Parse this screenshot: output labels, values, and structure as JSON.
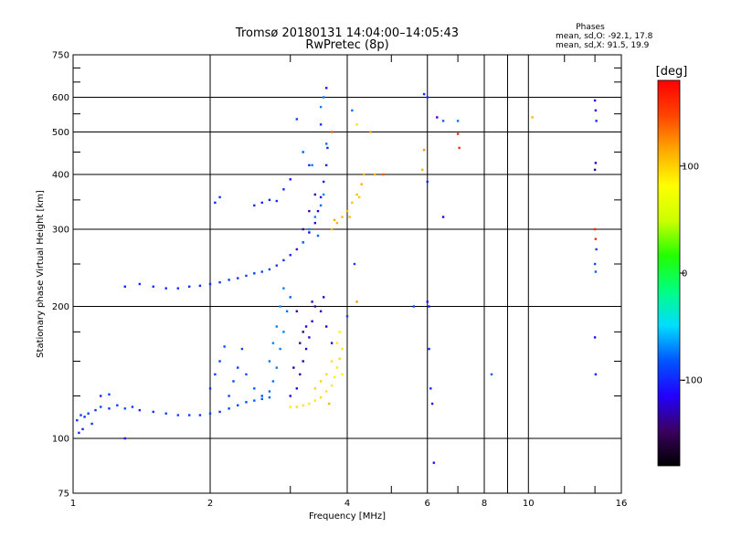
{
  "chart_data": {
    "type": "scatter",
    "title": "Tromsø 20180131 14:04:00–14:05:43",
    "subtitle": "RwPretec (8p)",
    "xlabel": "Frequency [MHz]",
    "ylabel": "Stationary phase Virtual Height [km]",
    "x_scale": "log",
    "y_scale": "log",
    "xlim": [
      1,
      16
    ],
    "ylim": [
      75,
      750
    ],
    "x_ticks": [
      1,
      2,
      4,
      6,
      8,
      10,
      16
    ],
    "x_tick_labels": [
      "1",
      "2",
      "4",
      "6",
      "8",
      "10",
      "16"
    ],
    "x_minor_ticks": [
      3,
      5,
      7,
      9,
      12,
      14
    ],
    "y_ticks": [
      75,
      100,
      200,
      300,
      400,
      500,
      600,
      750
    ],
    "y_tick_labels": [
      "75",
      "100",
      "200",
      "300",
      "400",
      "500",
      "600",
      "750"
    ],
    "y_minor_ticks": [
      125,
      150,
      175,
      250,
      350,
      450,
      550,
      650,
      700
    ],
    "grid": true,
    "stats": {
      "heading": "Phases",
      "line_o": "mean, sd,O: -92.1, 17.8",
      "line_x": "mean, sd,X:  91.5, 19.9"
    },
    "colorbar": {
      "label": "[deg]",
      "min": -180,
      "max": 180,
      "ticks": [
        100,
        0,
        -100
      ],
      "tick_labels": [
        "100",
        "0",
        "-100"
      ],
      "colors": [
        "#000000",
        "#3b0060",
        "#2200ff",
        "#0055ff",
        "#00ddff",
        "#00ff80",
        "#22ff00",
        "#ccff00",
        "#ffff00",
        "#ffaa00",
        "#ff4400",
        "#ff0000"
      ]
    },
    "series": [
      {
        "points": [
          [
            1.02,
            110,
            -95
          ],
          [
            1.04,
            113,
            -92
          ],
          [
            1.06,
            112,
            -98
          ],
          [
            1.08,
            114,
            -90
          ],
          [
            1.12,
            116,
            -93
          ],
          [
            1.15,
            118,
            -88
          ],
          [
            1.2,
            117,
            -95
          ],
          [
            1.25,
            119,
            -90
          ],
          [
            1.3,
            117,
            -85
          ],
          [
            1.35,
            118,
            -92
          ],
          [
            1.4,
            116,
            -100
          ],
          [
            1.5,
            115,
            -95
          ],
          [
            1.6,
            114,
            -90
          ],
          [
            1.7,
            113,
            -88
          ],
          [
            1.8,
            113,
            -92
          ],
          [
            1.9,
            113,
            -95
          ],
          [
            2.0,
            114,
            -90
          ],
          [
            2.1,
            115,
            -92
          ],
          [
            2.2,
            117,
            -88
          ],
          [
            2.3,
            119,
            -90
          ],
          [
            2.4,
            121,
            -85
          ],
          [
            2.5,
            122,
            -80
          ],
          [
            2.6,
            123,
            -82
          ],
          [
            2.7,
            124,
            -78
          ],
          [
            1.1,
            108,
            -95
          ],
          [
            1.05,
            105,
            -100
          ],
          [
            1.03,
            103,
            -98
          ],
          [
            1.3,
            100,
            -120
          ],
          [
            1.15,
            125,
            -100
          ],
          [
            1.2,
            126,
            -90
          ]
        ]
      },
      {
        "points": [
          [
            2.0,
            130,
            -95
          ],
          [
            2.05,
            140,
            -92
          ],
          [
            2.1,
            150,
            -90
          ],
          [
            2.15,
            162,
            -85
          ],
          [
            2.2,
            125,
            -88
          ],
          [
            2.25,
            135,
            -90
          ],
          [
            2.3,
            145,
            -92
          ],
          [
            2.35,
            160,
            -88
          ],
          [
            2.4,
            140,
            -85
          ],
          [
            2.5,
            130,
            -80
          ],
          [
            2.6,
            125,
            -82
          ],
          [
            2.7,
            128,
            -78
          ],
          [
            2.75,
            135,
            -75
          ],
          [
            2.8,
            145,
            -72
          ],
          [
            2.85,
            160,
            -70
          ],
          [
            2.9,
            175,
            -72
          ],
          [
            2.95,
            195,
            -75
          ],
          [
            3.0,
            210,
            -80
          ],
          [
            2.8,
            180,
            -70
          ],
          [
            2.85,
            200,
            -68
          ],
          [
            2.9,
            220,
            -72
          ],
          [
            2.7,
            150,
            -75
          ],
          [
            2.75,
            165,
            -70
          ]
        ]
      },
      {
        "points": [
          [
            3.0,
            125,
            -120
          ],
          [
            3.1,
            130,
            -125
          ],
          [
            3.15,
            140,
            -130
          ],
          [
            3.2,
            150,
            -128
          ],
          [
            3.25,
            160,
            -122
          ],
          [
            3.3,
            170,
            -118
          ],
          [
            3.35,
            185,
            -125
          ],
          [
            3.4,
            200,
            -130
          ],
          [
            3.05,
            145,
            -140
          ],
          [
            3.15,
            165,
            -135
          ],
          [
            3.25,
            180,
            -130
          ],
          [
            3.35,
            205,
            -128
          ],
          [
            3.5,
            195,
            -125
          ],
          [
            3.6,
            180,
            -120
          ],
          [
            3.7,
            165,
            -118
          ],
          [
            3.55,
            210,
            -122
          ],
          [
            3.1,
            195,
            -135
          ],
          [
            3.2,
            175,
            -140
          ]
        ]
      },
      {
        "points": [
          [
            3.0,
            118,
            90
          ],
          [
            3.1,
            118,
            95
          ],
          [
            3.2,
            119,
            92
          ],
          [
            3.3,
            120,
            88
          ],
          [
            3.4,
            122,
            90
          ],
          [
            3.5,
            124,
            95
          ],
          [
            3.6,
            128,
            92
          ],
          [
            3.7,
            132,
            90
          ],
          [
            3.75,
            138,
            88
          ],
          [
            3.8,
            145,
            92
          ],
          [
            3.85,
            152,
            95
          ],
          [
            3.9,
            160,
            90
          ],
          [
            3.6,
            140,
            95
          ],
          [
            3.7,
            150,
            92
          ],
          [
            3.8,
            165,
            90
          ],
          [
            3.85,
            175,
            88
          ],
          [
            3.5,
            135,
            100
          ],
          [
            3.4,
            130,
            98
          ],
          [
            3.65,
            120,
            110
          ],
          [
            3.9,
            140,
            85
          ]
        ]
      },
      {
        "points": [
          [
            1.3,
            222,
            -100
          ],
          [
            1.4,
            225,
            -98
          ],
          [
            1.5,
            222,
            -95
          ],
          [
            1.6,
            220,
            -100
          ],
          [
            1.7,
            220,
            -98
          ],
          [
            1.8,
            222,
            -95
          ],
          [
            1.9,
            223,
            -100
          ],
          [
            2.0,
            225,
            -98
          ],
          [
            2.1,
            227,
            -95
          ],
          [
            2.2,
            230,
            -92
          ],
          [
            2.3,
            232,
            -95
          ],
          [
            2.4,
            235,
            -90
          ],
          [
            2.5,
            238,
            -92
          ],
          [
            2.6,
            240,
            -88
          ],
          [
            2.7,
            243,
            -90
          ],
          [
            2.8,
            248,
            -92
          ],
          [
            2.9,
            255,
            -95
          ],
          [
            3.0,
            262,
            -100
          ],
          [
            3.1,
            270,
            -110
          ],
          [
            3.2,
            280,
            -118
          ],
          [
            3.3,
            295,
            -125
          ],
          [
            3.4,
            310,
            -120
          ],
          [
            3.45,
            330,
            -115
          ],
          [
            3.5,
            355,
            -110
          ],
          [
            3.55,
            385,
            -105
          ],
          [
            3.6,
            420,
            -100
          ],
          [
            3.62,
            460,
            -98
          ],
          [
            2.6,
            345,
            -100
          ],
          [
            2.7,
            350,
            -102
          ],
          [
            2.8,
            348,
            -98
          ],
          [
            2.5,
            340,
            -100
          ],
          [
            2.1,
            355,
            -95
          ],
          [
            2.05,
            345,
            -98
          ],
          [
            2.9,
            370,
            -100
          ],
          [
            3.0,
            390,
            -105
          ],
          [
            3.3,
            330,
            -130
          ],
          [
            3.4,
            360,
            -125
          ],
          [
            3.2,
            300,
            -132
          ]
        ]
      },
      {
        "points": [
          [
            3.2,
            280,
            -75
          ],
          [
            3.3,
            300,
            -70
          ],
          [
            3.4,
            320,
            -72
          ],
          [
            3.5,
            340,
            -75
          ],
          [
            3.55,
            360,
            -70
          ],
          [
            3.45,
            290,
            -78
          ],
          [
            3.35,
            420,
            -72
          ],
          [
            3.6,
            470,
            -75
          ],
          [
            3.5,
            570,
            -70
          ],
          [
            3.55,
            600,
            -72
          ]
        ]
      },
      {
        "points": [
          [
            3.7,
            300,
            110
          ],
          [
            3.8,
            310,
            112
          ],
          [
            3.9,
            320,
            108
          ],
          [
            4.0,
            330,
            110
          ],
          [
            4.1,
            345,
            105
          ],
          [
            4.2,
            360,
            108
          ],
          [
            4.3,
            380,
            110
          ],
          [
            4.35,
            400,
            112
          ],
          [
            3.75,
            315,
            115
          ],
          [
            4.05,
            320,
            108
          ],
          [
            4.25,
            355,
            105
          ]
        ]
      },
      {
        "points": [
          [
            3.3,
            420,
            -100
          ],
          [
            3.5,
            520,
            -95
          ],
          [
            3.7,
            500,
            140
          ],
          [
            3.6,
            630,
            -110
          ],
          [
            3.1,
            535,
            -90
          ],
          [
            4.1,
            560,
            -75
          ],
          [
            4.2,
            520,
            95
          ],
          [
            4.5,
            500,
            120
          ],
          [
            4.8,
            400,
            140
          ],
          [
            4.6,
            400,
            110
          ],
          [
            3.2,
            450,
            -80
          ],
          [
            4.15,
            250,
            -90
          ],
          [
            4.2,
            205,
            120
          ],
          [
            4.0,
            190,
            -90
          ]
        ]
      },
      {
        "points": [
          [
            5.6,
            200,
            -90
          ],
          [
            5.9,
            610,
            -100
          ],
          [
            6.0,
            600,
            -95
          ],
          [
            6.0,
            385,
            -100
          ],
          [
            6.0,
            205,
            -110
          ],
          [
            6.05,
            200,
            -105
          ],
          [
            6.05,
            160,
            -100
          ],
          [
            6.1,
            130,
            -100
          ],
          [
            6.15,
            120,
            -110
          ],
          [
            6.2,
            88,
            -110
          ],
          [
            5.9,
            455,
            120
          ],
          [
            5.85,
            410,
            110
          ],
          [
            6.3,
            540,
            -120
          ],
          [
            6.5,
            320,
            -120
          ],
          [
            6.5,
            530,
            -80
          ],
          [
            7.0,
            530,
            -75
          ],
          [
            7.0,
            495,
            160
          ],
          [
            7.05,
            460,
            160
          ],
          [
            8.3,
            140,
            -80
          ],
          [
            10.2,
            540,
            110
          ],
          [
            14.0,
            590,
            -120
          ],
          [
            14.05,
            560,
            -110
          ],
          [
            14.1,
            530,
            -100
          ],
          [
            14.0,
            410,
            -130
          ],
          [
            14.05,
            425,
            -120
          ],
          [
            14.0,
            300,
            160
          ],
          [
            14.05,
            285,
            160
          ],
          [
            14.1,
            270,
            -90
          ],
          [
            14.0,
            250,
            -85
          ],
          [
            14.05,
            240,
            -80
          ],
          [
            14.0,
            170,
            -110
          ],
          [
            14.05,
            140,
            -105
          ]
        ]
      }
    ]
  }
}
